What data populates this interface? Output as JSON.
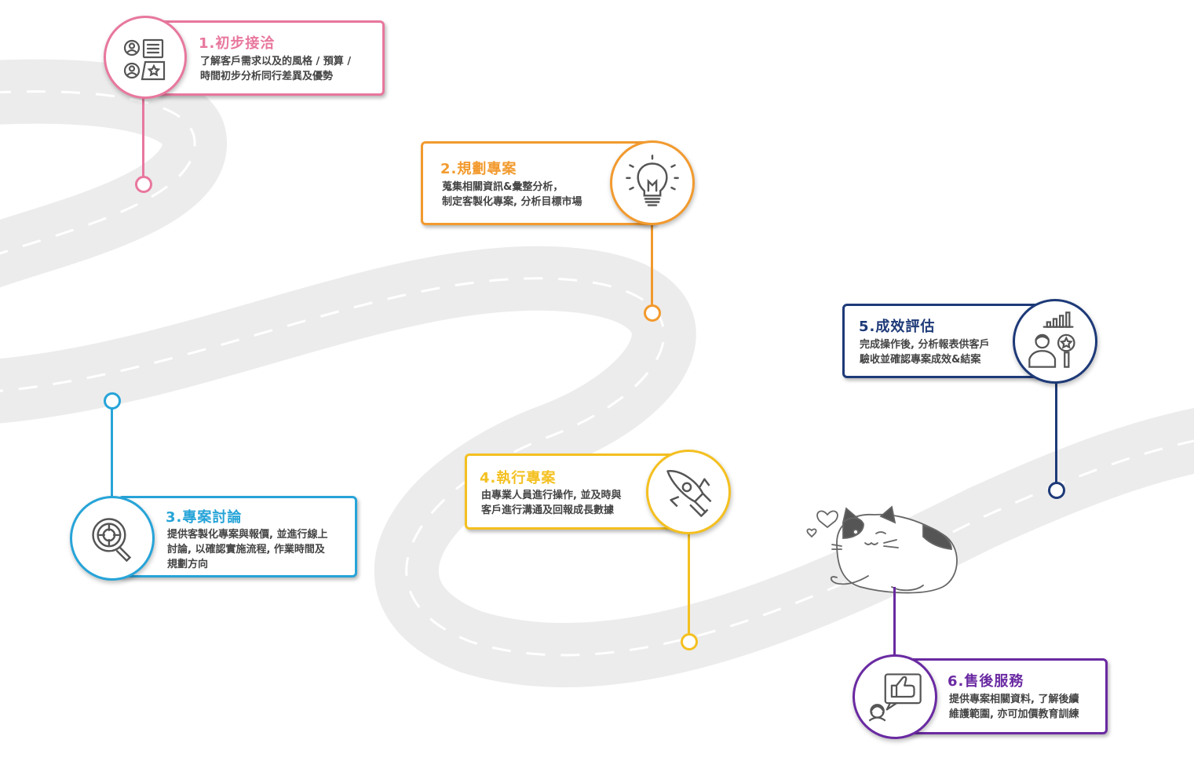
{
  "steps": [
    {
      "title": "1.初步接洽",
      "desc": [
        "了解客戶需求以及的風格 / 預算 /",
        "時間初步分析同行差異及優勢"
      ],
      "color": "#e8779e",
      "icon": "client-profile-icon"
    },
    {
      "title": "2.規劃專案",
      "desc": [
        "蒐集相關資訊&彙整分析，",
        "制定客製化專案, 分析目標市場"
      ],
      "color": "#f29a2e",
      "icon": "lightbulb-icon"
    },
    {
      "title": "3.專案討論",
      "desc": [
        "提供客製化專案與報價, 並進行線上",
        "討論, 以確認實施流程, 作業時間及",
        "規劃方向"
      ],
      "color": "#27a4d8",
      "icon": "magnifier-target-icon"
    },
    {
      "title": "4.執行專案",
      "desc": [
        "由專業人員進行操作, 並及時與",
        "客戶進行溝通及回報成長數據"
      ],
      "color": "#f4c020",
      "icon": "rocket-icon"
    },
    {
      "title": "5.成效評估",
      "desc": [
        "完成操作後, 分析報表供客戶",
        "驗收並確認專案成效&結案"
      ],
      "color": "#1e3a78",
      "icon": "analyst-chart-icon"
    },
    {
      "title": "6.售後服務",
      "desc": [
        "提供專案相關資料, 了解後續",
        "維護範圍, 亦可加價教育訓練"
      ],
      "color": "#6a2aa2",
      "icon": "thumbs-up-support-icon"
    }
  ],
  "decor": {
    "road_color": "#eeeeee",
    "dash_color": "#ffffff",
    "cat_icon": "sleeping-cat-icon",
    "heart_icon": "heart-icon"
  }
}
